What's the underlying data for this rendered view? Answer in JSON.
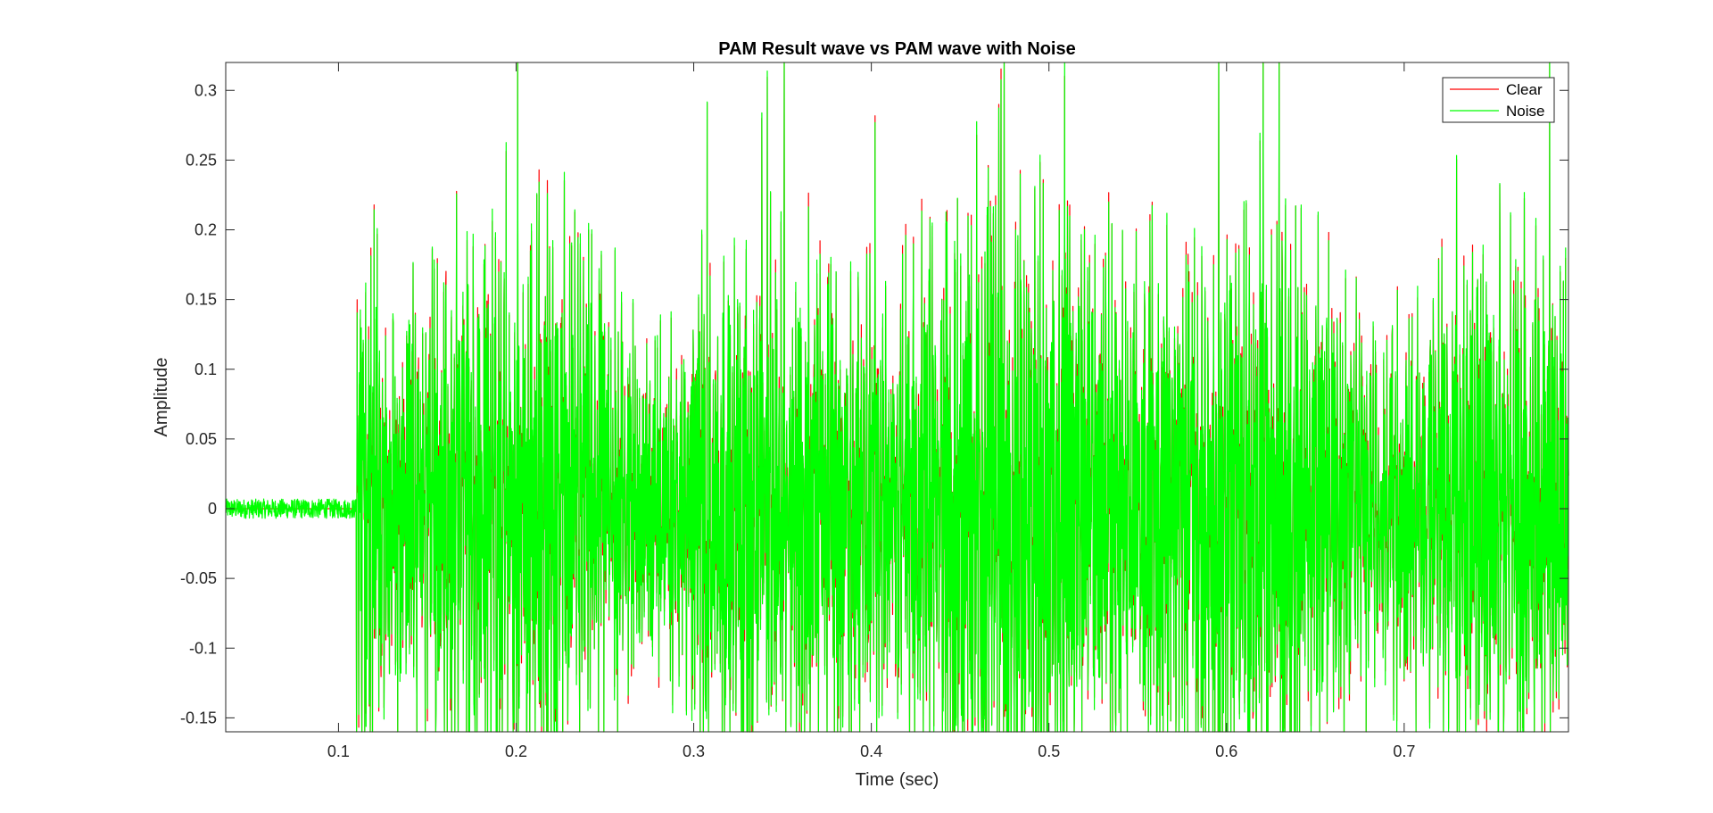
{
  "chart_data": {
    "type": "line",
    "title": "PAM Result wave vs PAM wave with Noise",
    "xlabel": "Time (sec)",
    "ylabel": "Amplitude",
    "xlim": [
      0.0365,
      0.7925
    ],
    "ylim": [
      -0.16,
      0.32
    ],
    "x_ticks": [
      0.1,
      0.2,
      0.3,
      0.4,
      0.5,
      0.6,
      0.7
    ],
    "x_tick_labels": [
      "0.1",
      "0.2",
      "0.3",
      "0.4",
      "0.5",
      "0.6",
      "0.7"
    ],
    "y_ticks": [
      -0.15,
      -0.1,
      -0.05,
      0,
      0.05,
      0.1,
      0.15,
      0.2,
      0.25,
      0.3
    ],
    "y_tick_labels": [
      "-0.15",
      "-0.1",
      "-0.05",
      "0",
      "0.05",
      "0.1",
      "0.15",
      "0.2",
      "0.25",
      "0.3"
    ],
    "grid": false,
    "legend_position": "top-right",
    "signal_onset": 0.11,
    "pre_onset_amplitude": 0.007,
    "peak_amplitude_range": [
      -0.16,
      0.32
    ],
    "series": [
      {
        "name": "Clear",
        "color": "#ff0000"
      },
      {
        "name": "Noise",
        "color": "#00ff00"
      }
    ]
  }
}
